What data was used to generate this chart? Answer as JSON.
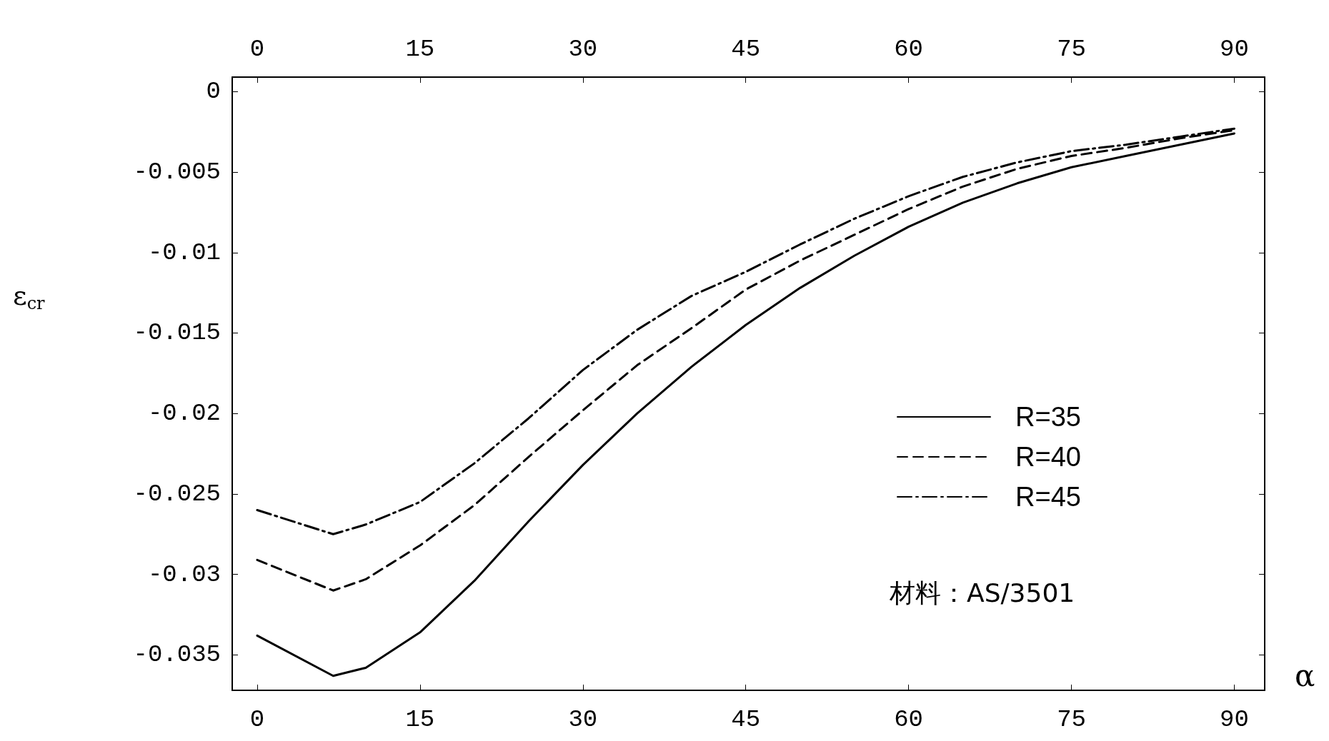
{
  "chart_data": {
    "type": "line",
    "xlabel": "α",
    "ylabel": "ε$_{cr}$",
    "x": [
      0,
      7,
      10,
      15,
      20,
      25,
      30,
      35,
      40,
      45,
      50,
      55,
      60,
      65,
      70,
      75,
      80,
      85,
      90
    ],
    "series": [
      {
        "name": "R=35",
        "color": "#000000",
        "line_style": "solid",
        "values": [
          -0.0338,
          -0.0363,
          -0.0358,
          -0.0336,
          -0.0304,
          -0.0267,
          -0.0232,
          -0.02,
          -0.0171,
          -0.0145,
          -0.0122,
          -0.0102,
          -0.0084,
          -0.0069,
          -0.0057,
          -0.0047,
          -0.004,
          -0.0033,
          -0.0026
        ]
      },
      {
        "name": "R=40",
        "color": "#000000",
        "line_style": "dashed",
        "values": [
          -0.0291,
          -0.031,
          -0.0303,
          -0.0282,
          -0.0257,
          -0.0227,
          -0.0198,
          -0.017,
          -0.0147,
          -0.0123,
          -0.0105,
          -0.0089,
          -0.0073,
          -0.0059,
          -0.0048,
          -0.004,
          -0.0035,
          -0.0029,
          -0.0024
        ]
      },
      {
        "name": "R=45",
        "color": "#000000",
        "line_style": "dashdot",
        "values": [
          -0.026,
          -0.0275,
          -0.0269,
          -0.0255,
          -0.0231,
          -0.0203,
          -0.0173,
          -0.0148,
          -0.0127,
          -0.0112,
          -0.0095,
          -0.0079,
          -0.0065,
          -0.0053,
          -0.0044,
          -0.0037,
          -0.0033,
          -0.0028,
          -0.0023
        ]
      }
    ],
    "xlim": [
      -2.3,
      92.8
    ],
    "xticks": [
      0,
      15,
      30,
      45,
      60,
      75,
      90
    ],
    "x2lim": [
      -2.3,
      92.8
    ],
    "x2ticks": [
      0,
      15,
      30,
      45,
      60,
      75,
      90
    ],
    "ylim": [
      -0.0372,
      0.0009
    ],
    "yticks": [
      0,
      -0.005,
      -0.01,
      -0.015,
      -0.02,
      -0.025,
      -0.03,
      -0.035
    ],
    "grid": false,
    "legend": "right",
    "marker": "none",
    "annotations": [
      "材料：AS/3501"
    ]
  }
}
